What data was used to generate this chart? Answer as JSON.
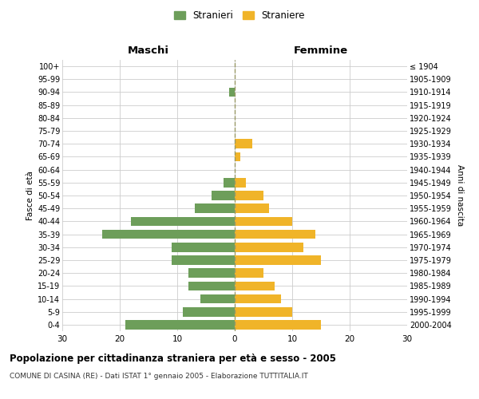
{
  "age_groups": [
    "100+",
    "95-99",
    "90-94",
    "85-89",
    "80-84",
    "75-79",
    "70-74",
    "65-69",
    "60-64",
    "55-59",
    "50-54",
    "45-49",
    "40-44",
    "35-39",
    "30-34",
    "25-29",
    "20-24",
    "15-19",
    "10-14",
    "5-9",
    "0-4"
  ],
  "birth_years": [
    "≤ 1904",
    "1905-1909",
    "1910-1914",
    "1915-1919",
    "1920-1924",
    "1925-1929",
    "1930-1934",
    "1935-1939",
    "1940-1944",
    "1945-1949",
    "1950-1954",
    "1955-1959",
    "1960-1964",
    "1965-1969",
    "1970-1974",
    "1975-1979",
    "1980-1984",
    "1985-1989",
    "1990-1994",
    "1995-1999",
    "2000-2004"
  ],
  "maschi": [
    0,
    0,
    1,
    0,
    0,
    0,
    0,
    0,
    0,
    2,
    4,
    7,
    18,
    23,
    11,
    11,
    8,
    8,
    6,
    9,
    19
  ],
  "femmine": [
    0,
    0,
    0,
    0,
    0,
    0,
    3,
    1,
    0,
    2,
    5,
    6,
    10,
    14,
    12,
    15,
    5,
    7,
    8,
    10,
    15
  ],
  "maschi_color": "#6d9e5a",
  "femmine_color": "#f0b429",
  "title": "Popolazione per cittadinanza straniera per età e sesso - 2005",
  "subtitle": "COMUNE DI CASINA (RE) - Dati ISTAT 1° gennaio 2005 - Elaborazione TUTTITALIA.IT",
  "xlabel_left": "Maschi",
  "xlabel_right": "Femmine",
  "ylabel_left": "Fasce di età",
  "ylabel_right": "Anni di nascita",
  "legend_maschi": "Stranieri",
  "legend_femmine": "Straniere",
  "xlim": 30,
  "background_color": "#ffffff",
  "grid_color": "#cccccc",
  "dashed_line_color": "#999966"
}
